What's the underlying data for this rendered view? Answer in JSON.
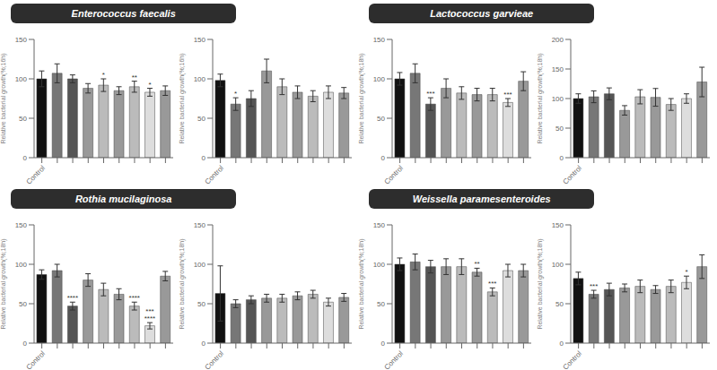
{
  "chart_data": [
    {
      "type": "bar",
      "title": "Enterococcus faecalis",
      "ylabel": "Relative bacterial growth(%;16h)",
      "categories": [
        "Control",
        null,
        null,
        null,
        null,
        null,
        null,
        null,
        null
      ],
      "values": [
        100,
        107,
        100,
        88,
        92,
        85,
        90,
        83,
        85
      ],
      "errors": [
        10,
        12,
        5,
        6,
        8,
        5,
        7,
        5,
        6
      ],
      "colors": [
        "#111111",
        "#777777",
        "#555555",
        "#999999",
        "#bbbbbb",
        "#999999",
        "#bbbbbb",
        "#dddddd",
        "#999999"
      ],
      "annotations": [
        null,
        null,
        null,
        null,
        [
          "*"
        ],
        null,
        [
          "**"
        ],
        [
          "*"
        ],
        null
      ],
      "ylim": [
        0,
        150
      ],
      "yticks": [
        0,
        50,
        100,
        150
      ]
    },
    {
      "type": "bar",
      "ylabel": "Relative bacterial growth(%;16h)",
      "categories": [
        "Control",
        null,
        null,
        null,
        null,
        null,
        null,
        null,
        null
      ],
      "values": [
        98,
        68,
        75,
        110,
        90,
        83,
        78,
        83,
        82
      ],
      "errors": [
        8,
        8,
        10,
        15,
        10,
        8,
        7,
        8,
        7
      ],
      "colors": [
        "#111111",
        "#777777",
        "#555555",
        "#999999",
        "#bbbbbb",
        "#999999",
        "#bbbbbb",
        "#dddddd",
        "#999999"
      ],
      "annotations": [
        null,
        [
          "*"
        ],
        null,
        null,
        null,
        null,
        null,
        null,
        null
      ],
      "ylim": [
        0,
        150
      ],
      "yticks": [
        0,
        50,
        100,
        150
      ]
    },
    {
      "type": "bar",
      "title": "Lactococcus garvieae",
      "ylabel": "Relative bacterial growth(%;18h)",
      "categories": [
        "Control",
        null,
        null,
        null,
        null,
        null,
        null,
        null,
        null
      ],
      "values": [
        100,
        107,
        68,
        88,
        82,
        80,
        80,
        70,
        97
      ],
      "errors": [
        8,
        12,
        8,
        12,
        8,
        8,
        8,
        5,
        12
      ],
      "colors": [
        "#111111",
        "#777777",
        "#555555",
        "#999999",
        "#bbbbbb",
        "#999999",
        "#bbbbbb",
        "#dddddd",
        "#999999"
      ],
      "annotations": [
        null,
        null,
        [
          "***"
        ],
        null,
        null,
        null,
        null,
        [
          "***"
        ],
        null
      ],
      "ylim": [
        0,
        150
      ],
      "yticks": [
        0,
        50,
        100,
        150
      ]
    },
    {
      "type": "bar",
      "ylabel": "Relative bacterial growth(%;18h)",
      "categories": [
        "Control",
        null,
        null,
        null,
        null,
        null,
        null,
        null,
        null
      ],
      "values": [
        100,
        103,
        108,
        80,
        103,
        102,
        90,
        100,
        128
      ],
      "errors": [
        8,
        10,
        10,
        8,
        12,
        15,
        10,
        8,
        25
      ],
      "colors": [
        "#111111",
        "#777777",
        "#555555",
        "#999999",
        "#bbbbbb",
        "#999999",
        "#bbbbbb",
        "#dddddd",
        "#999999"
      ],
      "ylim": [
        0,
        200
      ],
      "yticks": [
        0,
        50,
        100,
        150,
        200
      ]
    },
    {
      "type": "bar",
      "title": "Rothia mucilaginosa",
      "ylabel": "Relative bacterial growth(%;18h)",
      "categories": [
        "Control",
        null,
        null,
        null,
        null,
        null,
        null,
        null,
        null
      ],
      "values": [
        87,
        92,
        47,
        80,
        68,
        62,
        47,
        22,
        85
      ],
      "errors": [
        6,
        8,
        5,
        8,
        8,
        7,
        5,
        4,
        6
      ],
      "colors": [
        "#111111",
        "#777777",
        "#555555",
        "#999999",
        "#bbbbbb",
        "#999999",
        "#bbbbbb",
        "#dddddd",
        "#999999"
      ],
      "annotations": [
        null,
        null,
        [
          "****"
        ],
        null,
        null,
        null,
        [
          "****"
        ],
        [
          "****",
          "***"
        ],
        null
      ],
      "ylim": [
        0,
        150
      ],
      "yticks": [
        0,
        50,
        100,
        150
      ]
    },
    {
      "type": "bar",
      "ylabel": "Relative bacterial growth(%;18h)",
      "categories": [
        "Control",
        null,
        null,
        null,
        null,
        null,
        null,
        null,
        null
      ],
      "values": [
        63,
        50,
        55,
        57,
        57,
        60,
        62,
        52,
        58
      ],
      "errors": [
        35,
        5,
        5,
        5,
        5,
        5,
        5,
        5,
        5
      ],
      "colors": [
        "#111111",
        "#777777",
        "#555555",
        "#999999",
        "#bbbbbb",
        "#999999",
        "#bbbbbb",
        "#dddddd",
        "#999999"
      ],
      "ylim": [
        0,
        150
      ],
      "yticks": [
        0,
        50,
        100,
        150
      ]
    },
    {
      "type": "bar",
      "title": "Weissella paramesenteroides",
      "ylabel": "Relative bacterial growth(%;18h)",
      "categories": [
        "Control",
        null,
        null,
        null,
        null,
        null,
        null,
        null,
        null
      ],
      "values": [
        100,
        103,
        97,
        97,
        97,
        90,
        65,
        92,
        92
      ],
      "errors": [
        8,
        10,
        8,
        10,
        10,
        5,
        5,
        8,
        8
      ],
      "colors": [
        "#111111",
        "#777777",
        "#555555",
        "#999999",
        "#bbbbbb",
        "#999999",
        "#bbbbbb",
        "#dddddd",
        "#999999"
      ],
      "annotations": [
        null,
        null,
        null,
        null,
        null,
        [
          "**"
        ],
        [
          "***"
        ],
        null,
        null
      ],
      "ylim": [
        0,
        150
      ],
      "yticks": [
        0,
        50,
        100,
        150
      ]
    },
    {
      "type": "bar",
      "ylabel": "Relative bacterial growth(%;18h)",
      "categories": [
        "Control",
        null,
        null,
        null,
        null,
        null,
        null,
        null,
        null
      ],
      "values": [
        82,
        62,
        68,
        70,
        72,
        68,
        72,
        77,
        97
      ],
      "errors": [
        8,
        5,
        8,
        5,
        8,
        5,
        8,
        8,
        15
      ],
      "colors": [
        "#111111",
        "#777777",
        "#555555",
        "#999999",
        "#bbbbbb",
        "#999999",
        "#bbbbbb",
        "#dddddd",
        "#999999"
      ],
      "annotations": [
        null,
        [
          "***"
        ],
        null,
        null,
        null,
        null,
        null,
        [
          "*"
        ],
        null
      ],
      "ylim": [
        0,
        150
      ],
      "yticks": [
        0,
        50,
        100,
        150
      ]
    }
  ]
}
